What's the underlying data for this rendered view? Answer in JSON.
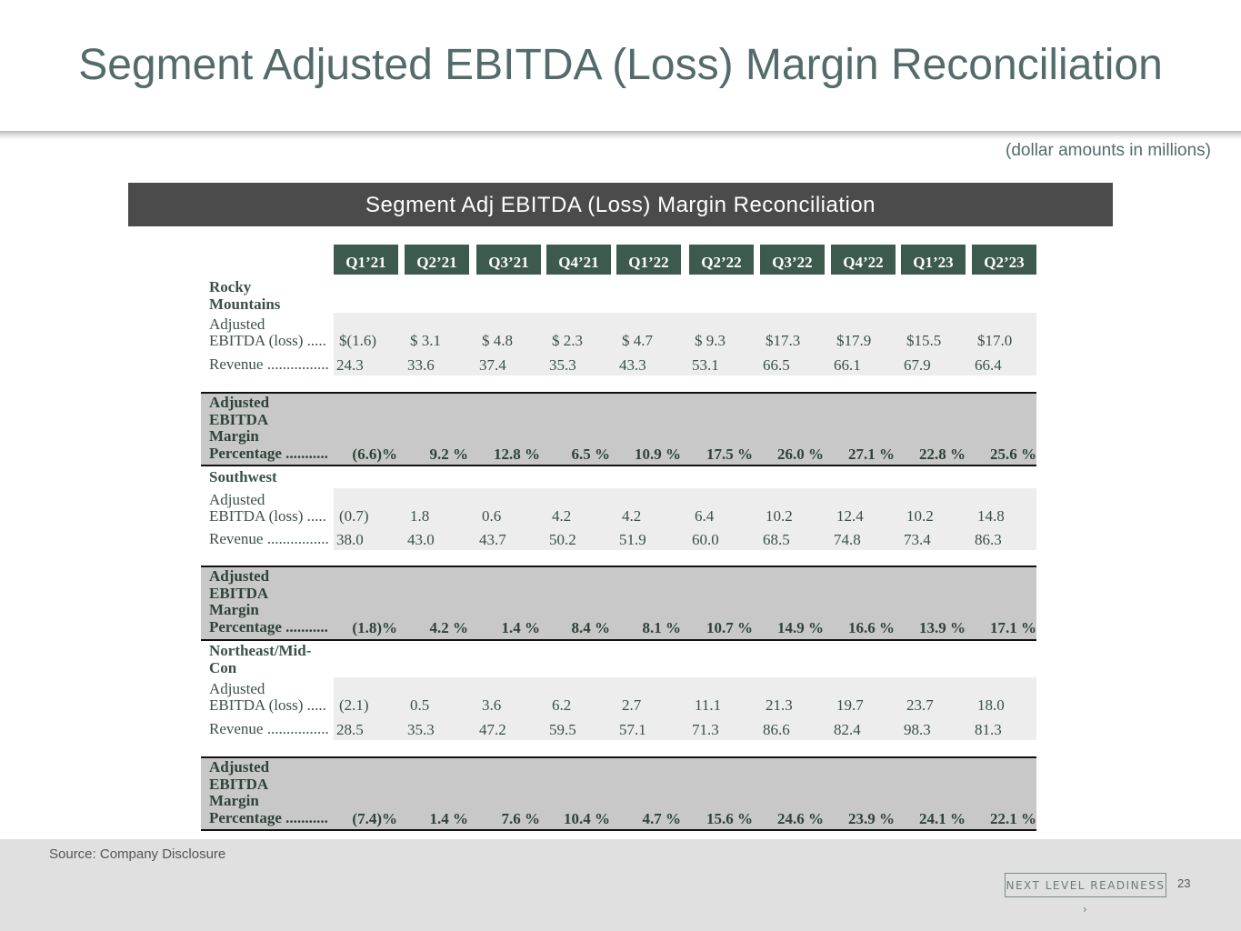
{
  "slide": {
    "title": "Segment Adjusted EBITDA (Loss) Margin Reconciliation",
    "units_note": "(dollar amounts in millions)",
    "banner": "Segment Adj EBITDA (Loss) Margin Reconciliation",
    "source": "Source: Company Disclosure",
    "brand_label": "NEXT LEVEL READINESS",
    "page_number": "23"
  },
  "quarters": [
    "Q1’21",
    "Q2’21",
    "Q3’21",
    "Q4’21",
    "Q1’22",
    "Q2’22",
    "Q3’22",
    "Q4’22",
    "Q1’23",
    "Q2’23"
  ],
  "labels": {
    "adj_ebitda_line1": "Adjusted",
    "adj_ebitda_line2": "EBITDA (loss) .....",
    "revenue": "Revenue ................",
    "margin_line1": "Adjusted",
    "margin_line2": "EBITDA",
    "margin_line3": "Margin",
    "margin_line4": "Percentage ..........."
  },
  "segments": [
    {
      "name_line1": "Rocky",
      "name_line2": "Mountains",
      "ebitda": [
        "$(1.6)",
        "$  3.1",
        "$  4.8",
        "$  2.3",
        "$  4.7",
        "$  9.3",
        "$17.3",
        "$17.9",
        "$15.5",
        "$17.0"
      ],
      "revenue": [
        "24.3",
        "33.6",
        "37.4",
        "35.3",
        "43.3",
        "53.1",
        "66.5",
        "66.1",
        "67.9",
        "66.4"
      ],
      "margin": [
        "(6.6)%",
        "9.2 %",
        "12.8 %",
        "6.5 %",
        "10.9 %",
        "17.5 %",
        "26.0 %",
        "27.1 %",
        "22.8 %",
        "25.6 %"
      ]
    },
    {
      "name_line1": "Southwest",
      "name_line2": "",
      "ebitda": [
        "(0.7)",
        "1.8",
        "0.6",
        "4.2",
        "4.2",
        "6.4",
        "10.2",
        "12.4",
        "10.2",
        "14.8"
      ],
      "revenue": [
        "38.0",
        "43.0",
        "43.7",
        "50.2",
        "51.9",
        "60.0",
        "68.5",
        "74.8",
        "73.4",
        "86.3"
      ],
      "margin": [
        "(1.8)%",
        "4.2 %",
        "1.4 %",
        "8.4 %",
        "8.1 %",
        "10.7 %",
        "14.9 %",
        "16.6 %",
        "13.9 %",
        "17.1 %"
      ]
    },
    {
      "name_line1": "Northeast/Mid-",
      "name_line2": "Con",
      "ebitda": [
        "(2.1)",
        "0.5",
        "3.6",
        "6.2",
        "2.7",
        "11.1",
        "21.3",
        "19.7",
        "23.7",
        "18.0"
      ],
      "revenue": [
        "28.5",
        "35.3",
        "47.2",
        "59.5",
        "57.1",
        "71.3",
        "86.6",
        "82.4",
        "98.3",
        "81.3"
      ],
      "margin": [
        "(7.4)%",
        "1.4 %",
        "7.6 %",
        "10.4 %",
        "4.7 %",
        "15.6 %",
        "24.6 %",
        "23.9 %",
        "24.1 %",
        "22.1 %"
      ]
    }
  ]
}
